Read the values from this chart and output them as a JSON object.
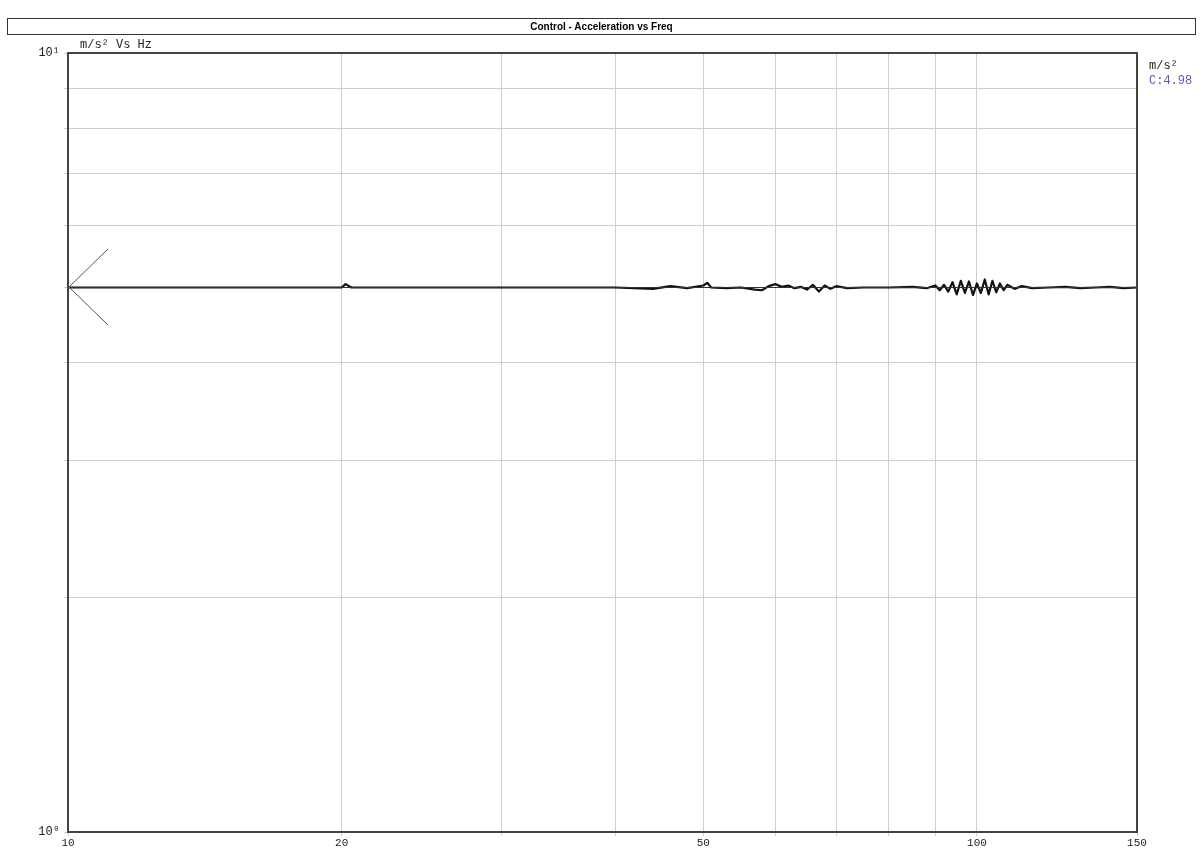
{
  "chart_data": {
    "type": "line",
    "title": "Control - Acceleration  vs  Freq",
    "ylabel": "m/s² Vs Hz",
    "annotations": [
      "m/s²",
      "C:4.98"
    ],
    "log": "xy",
    "grid": true,
    "legend": false,
    "marker": "none",
    "line_style": "solid",
    "xlim": [
      10,
      150
    ],
    "xticks": [
      10,
      20,
      {
        "value": 30,
        "label": null
      },
      {
        "value": 40,
        "label": null
      },
      50,
      {
        "value": 60,
        "label": null
      },
      {
        "value": 70,
        "label": null
      },
      {
        "value": 80,
        "label": null
      },
      {
        "value": 90,
        "label": null
      },
      100,
      150
    ],
    "ylim": [
      1,
      10
    ],
    "yticks": [
      {
        "value": 1,
        "label": "10⁰"
      },
      {
        "value": 2,
        "label": null
      },
      {
        "value": 3,
        "label": null
      },
      {
        "value": 4,
        "label": null
      },
      {
        "value": 5,
        "label": null
      },
      {
        "value": 6,
        "label": null
      },
      {
        "value": 7,
        "label": null
      },
      {
        "value": 8,
        "label": null
      },
      {
        "value": 9,
        "label": null
      },
      {
        "value": 10,
        "label": "10¹"
      }
    ],
    "series": [
      {
        "color": "#1f2a80",
        "x": [
          10,
          150
        ],
        "values": [
          5,
          5
        ]
      },
      {
        "color": "#111111",
        "x": [
          10,
          12,
          15,
          18,
          20,
          20.2,
          20.5,
          25,
          30,
          35,
          40,
          44,
          46,
          48,
          50,
          50.5,
          51,
          53,
          55,
          57,
          58,
          59,
          60,
          61,
          62,
          63,
          64,
          65,
          66,
          67,
          68,
          69,
          70,
          72,
          75,
          80,
          85,
          88,
          90,
          91,
          92,
          93,
          94,
          95,
          96,
          97,
          98,
          99,
          100,
          101,
          102,
          103,
          104,
          105,
          106,
          107,
          108,
          110,
          112,
          115,
          120,
          125,
          130,
          135,
          140,
          145,
          150
        ],
        "values": [
          5.0,
          5.0,
          5.0,
          5.0,
          5.0,
          5.05,
          5.0,
          5.0,
          5.0,
          5.0,
          5.0,
          4.98,
          5.02,
          4.99,
          5.03,
          5.07,
          5.0,
          4.99,
          5.0,
          4.97,
          4.96,
          5.02,
          5.05,
          5.01,
          5.03,
          4.99,
          5.01,
          4.97,
          5.04,
          4.94,
          5.03,
          4.98,
          5.02,
          4.99,
          5.0,
          5.0,
          5.01,
          4.99,
          5.03,
          4.96,
          5.04,
          4.94,
          5.08,
          4.9,
          5.1,
          4.92,
          5.09,
          4.89,
          5.06,
          4.92,
          5.12,
          4.9,
          5.1,
          4.93,
          5.06,
          4.96,
          5.04,
          4.98,
          5.02,
          4.99,
          5.0,
          5.01,
          4.99,
          5.0,
          5.01,
          4.99,
          5.0
        ]
      }
    ]
  }
}
